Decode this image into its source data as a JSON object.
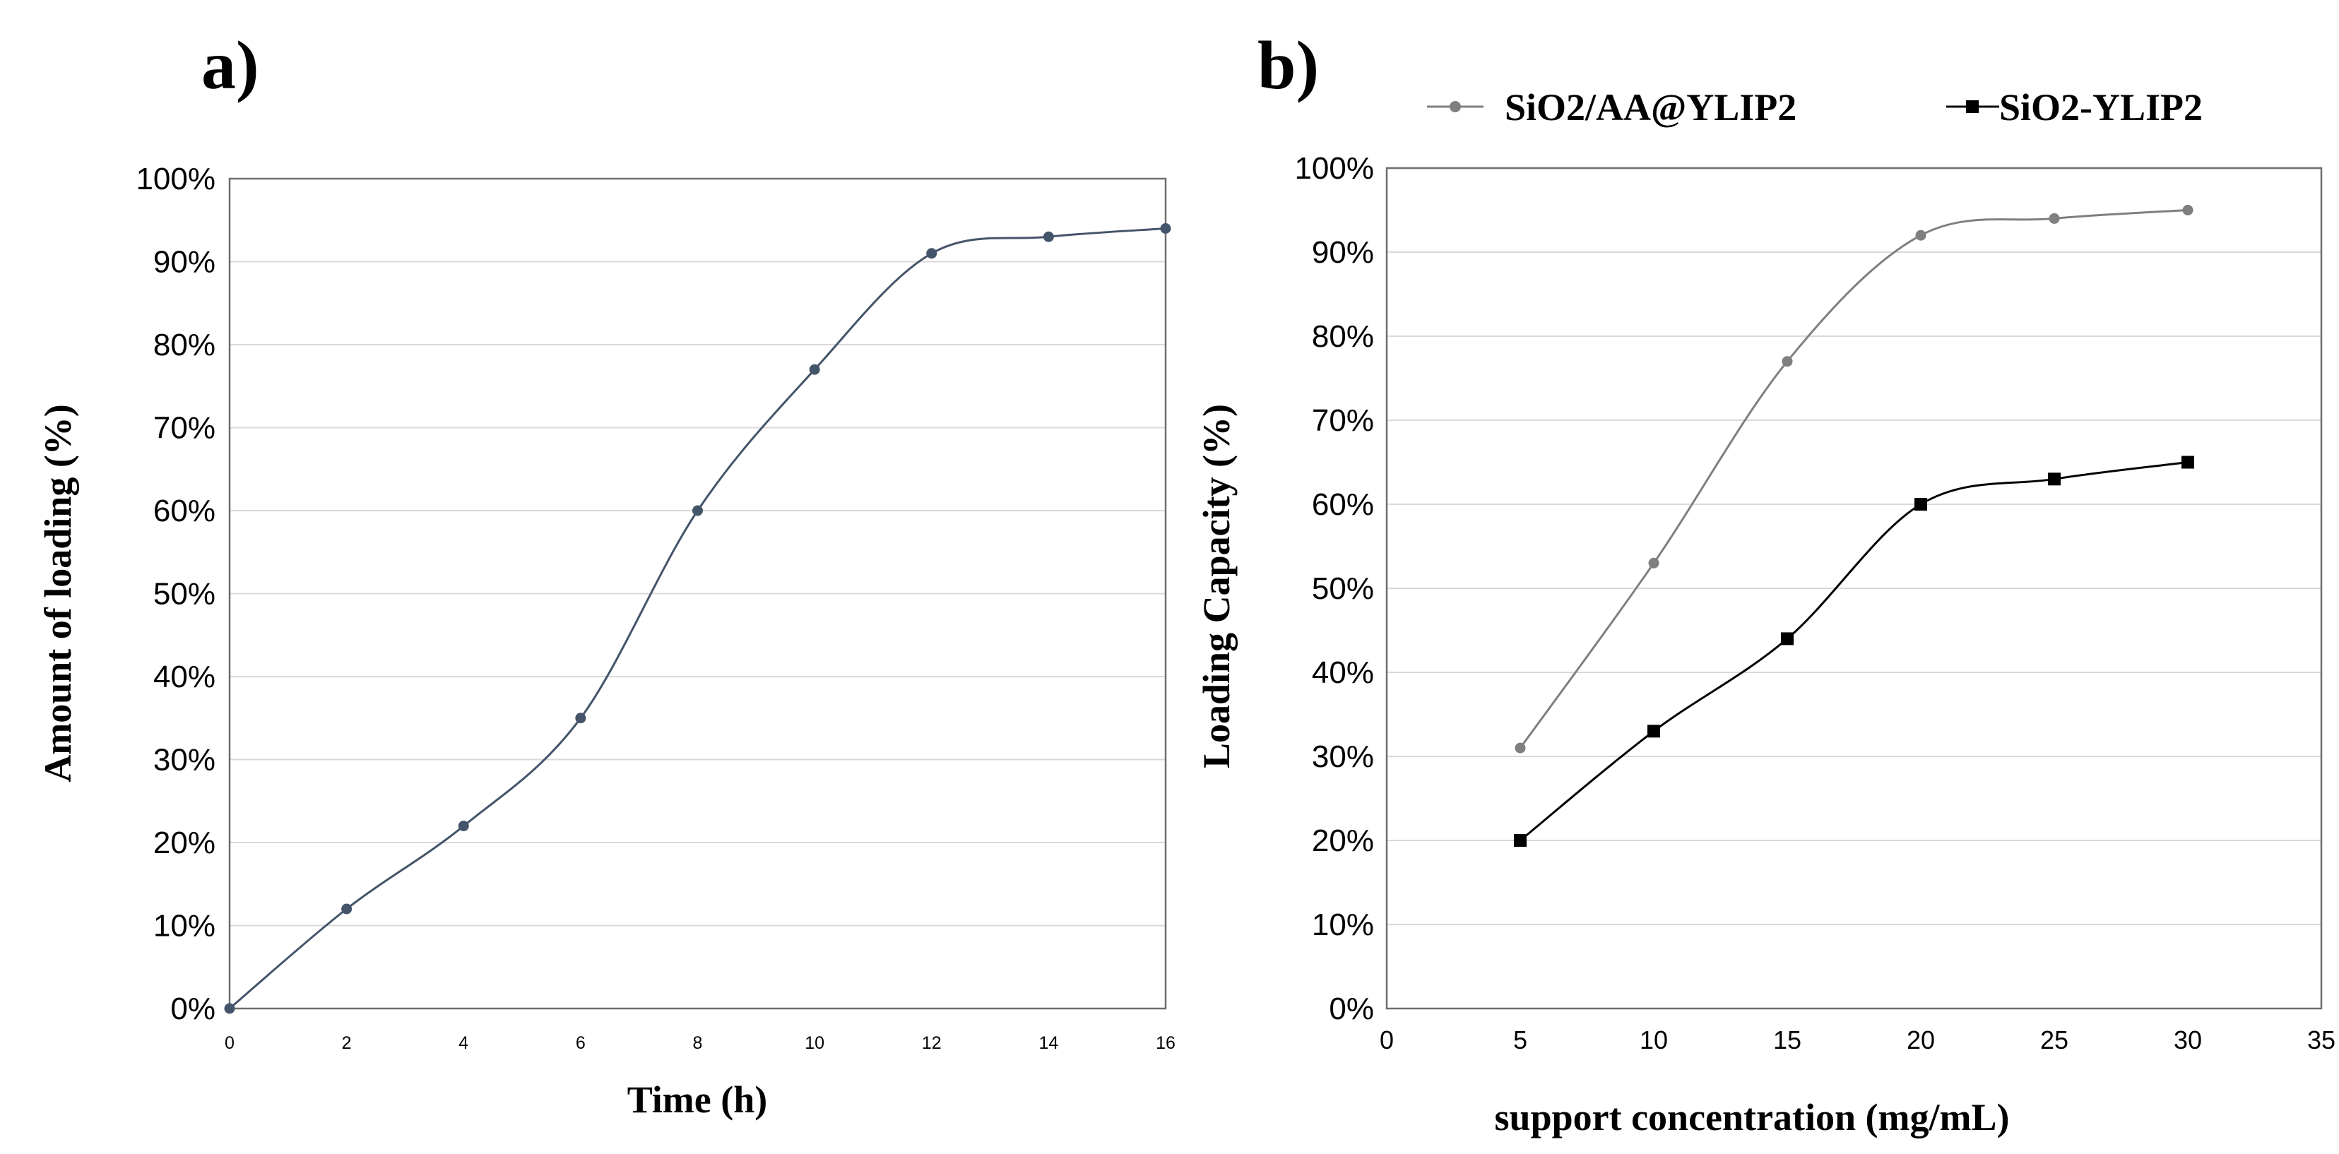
{
  "chart_data": [
    {
      "panel": "a)",
      "type": "line",
      "xlabel": "Time (h)",
      "ylabel": "Amount of loading (%)",
      "xlim": [
        0,
        16
      ],
      "ylim": [
        0,
        100
      ],
      "x_ticks": [
        "0",
        "2",
        "4",
        "6",
        "8",
        "10",
        "12",
        "14",
        "16"
      ],
      "y_ticks": [
        "0%",
        "10%",
        "20%",
        "30%",
        "40%",
        "50%",
        "60%",
        "70%",
        "80%",
        "90%",
        "100%"
      ],
      "grid": true,
      "series": [
        {
          "name": "Amount of loading",
          "color": "#44546a",
          "marker": "circle",
          "x": [
            0,
            2,
            4,
            6,
            8,
            10,
            12,
            14,
            16
          ],
          "y": [
            0,
            12,
            22,
            35,
            60,
            77,
            91,
            93,
            94
          ]
        }
      ]
    },
    {
      "panel": "b)",
      "type": "line",
      "xlabel": "support concentration (mg/mL)",
      "ylabel": "Loading Capacity (%)",
      "xlim": [
        0,
        35
      ],
      "ylim": [
        0,
        100
      ],
      "x_ticks": [
        "0",
        "5",
        "10",
        "15",
        "20",
        "25",
        "30",
        "35"
      ],
      "y_ticks": [
        "0%",
        "10%",
        "20%",
        "30%",
        "40%",
        "50%",
        "60%",
        "70%",
        "80%",
        "90%",
        "100%"
      ],
      "grid": true,
      "legend": "top",
      "series": [
        {
          "name": "SiO2/AA@YLIP2",
          "color": "#7f7f7f",
          "marker": "circle",
          "x": [
            5,
            10,
            15,
            20,
            25,
            30
          ],
          "y": [
            31,
            53,
            77,
            92,
            94,
            95
          ]
        },
        {
          "name": "SiO2-YLIP2",
          "color": "#000000",
          "marker": "square",
          "x": [
            5,
            10,
            15,
            20,
            25,
            30
          ],
          "y": [
            20,
            33,
            44,
            60,
            63,
            65
          ]
        }
      ]
    }
  ]
}
